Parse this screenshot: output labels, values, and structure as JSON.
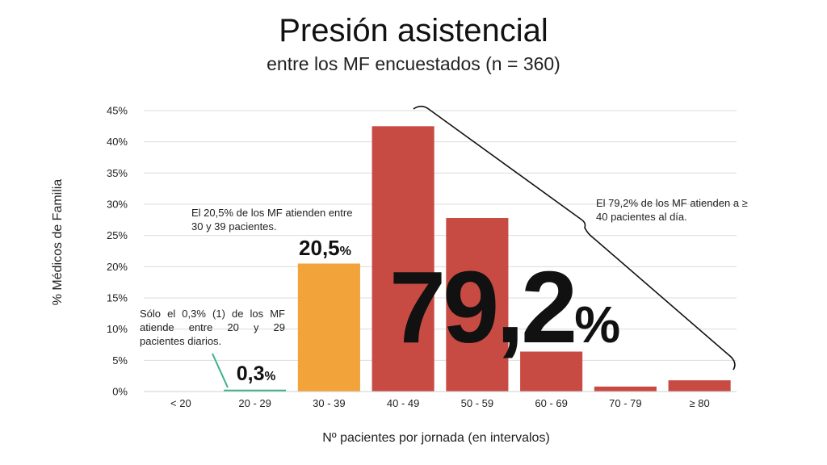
{
  "title": "Presión asistencial",
  "subtitle": "entre los MF encuestados (n = 360)",
  "colors": {
    "green": "#3bb088",
    "orange": "#f2a33a",
    "red": "#c84b43",
    "grid": "#dcdcdc"
  },
  "chart_data": {
    "type": "bar",
    "title": "Presión asistencial",
    "subtitle": "entre los MF encuestados (n = 360)",
    "xlabel": "Nº pacientes por jornada (en intervalos)",
    "ylabel": "% Médicos de Familia",
    "ylim": [
      0,
      45
    ],
    "yticks": [
      "0%",
      "5%",
      "10%",
      "15%",
      "20%",
      "25%",
      "30%",
      "35%",
      "40%",
      "45%"
    ],
    "grid": true,
    "categories": [
      "< 20",
      "20 - 29",
      "30 - 39",
      "40 - 49",
      "50 - 59",
      "60 - 69",
      "70 - 79",
      "≥ 80"
    ],
    "values": [
      0,
      0.3,
      20.5,
      42.5,
      27.8,
      6.4,
      0.8,
      1.8
    ],
    "bar_colors": [
      "#3bb088",
      "#3bb088",
      "#f2a33a",
      "#c84b43",
      "#c84b43",
      "#c84b43",
      "#c84b43",
      "#c84b43"
    ]
  },
  "annotations": {
    "low_text": "Sólo el 0,3% (1) de los MF atiende entre 20 y 29 pacientes diarios.",
    "low_value": "0,3",
    "mid_text": "El 20,5% de los MF atienden entre 30 y 39 pacientes.",
    "mid_value": "20,5",
    "high_text": "El 79,2% de los MF atienden a ≥ 40 pacientes al día.",
    "high_value": "79,2",
    "pct": "%"
  }
}
